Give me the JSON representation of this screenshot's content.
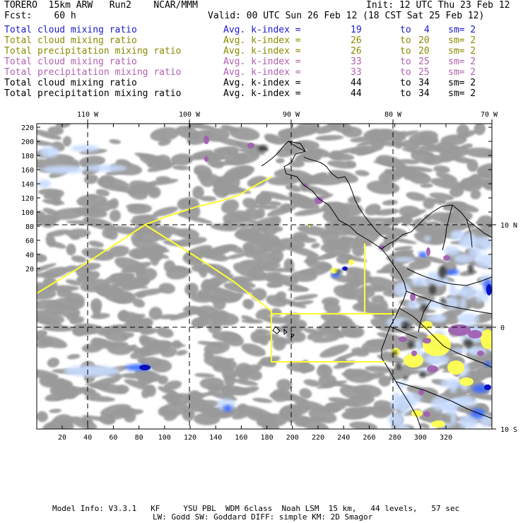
{
  "header": {
    "model": "TORERO  15km ARW   Run2    NCAR/MMM",
    "init": "Init: 12 UTC Thu 23 Feb 12",
    "fcst": "Fcst:    60 h",
    "valid": "Valid: 00 UTC Sun 26 Feb 12 (18 CST Sat 25 Feb 12)"
  },
  "legend": [
    {
      "field": "Total cloud mixing ratio",
      "index": "Avg. k-index =",
      "from": "19",
      "to_word": "to",
      "to": "4",
      "sm": "sm= 2",
      "color": "#1a1acc"
    },
    {
      "field": "Total cloud mixing ratio",
      "index": "Avg. k-index =",
      "from": "26",
      "to_word": "to",
      "to": "20",
      "sm": "sm= 2",
      "color": "#8a8a00"
    },
    {
      "field": "Total precipitation mixing ratio",
      "index": "Avg. k-index =",
      "from": "26",
      "to_word": "to",
      "to": "20",
      "sm": "sm= 2",
      "color": "#8a8a00"
    },
    {
      "field": "Total cloud mixing ratio",
      "index": "Avg. k-index =",
      "from": "33",
      "to_word": "to",
      "to": "25",
      "sm": "sm= 2",
      "color": "#b060b0"
    },
    {
      "field": "Total precipitation mixing ratio",
      "index": "Avg. k-index =",
      "from": "33",
      "to_word": "to",
      "to": "25",
      "sm": "sm= 2",
      "color": "#b060b0"
    },
    {
      "field": "Total cloud mixing ratio",
      "index": "Avg. k-index =",
      "from": "44",
      "to_word": "to",
      "to": "34",
      "sm": "sm= 2",
      "color": "#000000"
    },
    {
      "field": "Total precipitation mixing ratio",
      "index": "Avg. k-index =",
      "from": "44",
      "to_word": "to",
      "to": "34",
      "sm": "sm= 2",
      "color": "#000000"
    }
  ],
  "map": {
    "lon_labels": [
      "110 W",
      "100 W",
      "90 W",
      "80 W",
      "70 W"
    ],
    "lat_labels": [
      "10 N",
      "0",
      "10 S"
    ],
    "y_ticks": [
      "220",
      "200",
      "180",
      "160",
      "140",
      "120",
      "100",
      "80",
      "60",
      "40",
      "20"
    ],
    "x_ticks": [
      "20",
      "40",
      "60",
      "80",
      "100",
      "120",
      "140",
      "160",
      "180",
      "200",
      "220",
      "240",
      "260",
      "280",
      "300",
      "320"
    ],
    "colors": {
      "clouds_gray": "#9a9a9a",
      "dark_core": "#3a3a3a",
      "light_blue": "#c8dcff",
      "blue": "#3a6aff",
      "deep_blue": "#0a10c0",
      "purple": "#a060b0",
      "yellow": "#ffff50",
      "yellow_line": "#ffff30",
      "coast": "#000000"
    }
  },
  "footer": {
    "line1": "Model Info: V3.3.1   KF     YSU PBL  WDM 6class  Noah LSM  15 km,   44 levels,   57 sec",
    "line2": "LW: Godd SW: Goddard DIFF: simple KM: 2D Smagor"
  }
}
